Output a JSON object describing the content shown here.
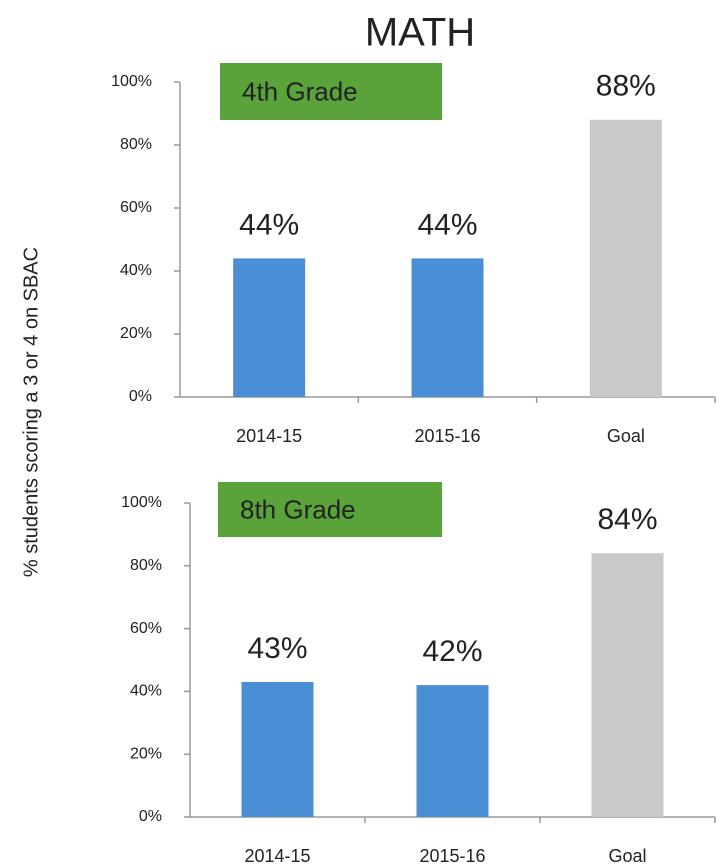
{
  "title": "MATH",
  "y_label": "% students scoring a 3 or 4 on SBAC",
  "chart_data": [
    {
      "type": "bar",
      "annotation": "4th Grade",
      "categories": [
        "2014-15",
        "2015-16",
        "Goal"
      ],
      "values": [
        44,
        44,
        88
      ],
      "value_labels": [
        "44%",
        "44%",
        "88%"
      ],
      "colors": [
        "#4a8fd6",
        "#4a8fd6",
        "#c9c9c9"
      ],
      "ylim": [
        0,
        100
      ],
      "yticks": [
        {
          "value": 0,
          "label": "0%"
        },
        {
          "value": 20,
          "label": "20%"
        },
        {
          "value": 40,
          "label": "40%"
        },
        {
          "value": 60,
          "label": "60%"
        },
        {
          "value": 80,
          "label": "80%"
        },
        {
          "value": 100,
          "label": "100%"
        }
      ],
      "grid": false
    },
    {
      "type": "bar",
      "annotation": "8th Grade",
      "categories": [
        "2014-15",
        "2015-16",
        "Goal"
      ],
      "values": [
        43,
        42,
        84
      ],
      "value_labels": [
        "43%",
        "42%",
        "84%"
      ],
      "colors": [
        "#4a8fd6",
        "#4a8fd6",
        "#c9c9c9"
      ],
      "ylim": [
        0,
        100
      ],
      "yticks": [
        {
          "value": 0,
          "label": "0%"
        },
        {
          "value": 20,
          "label": "20%"
        },
        {
          "value": 40,
          "label": "40%"
        },
        {
          "value": 60,
          "label": "60%"
        },
        {
          "value": 80,
          "label": "80%"
        },
        {
          "value": 100,
          "label": "100%"
        }
      ],
      "grid": false
    }
  ]
}
